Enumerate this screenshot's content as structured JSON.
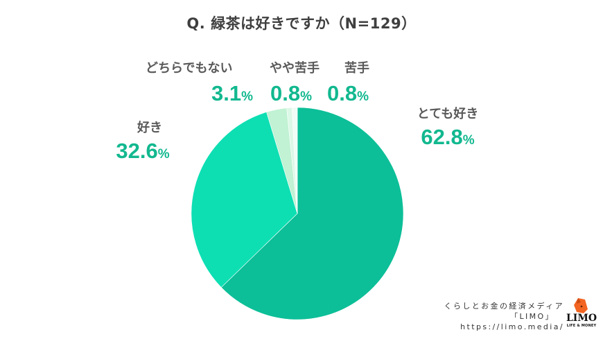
{
  "title": "Q. 緑茶は好きですか（N=129）",
  "chart_data": {
    "type": "pie",
    "title": "Q. 緑茶は好きですか（N=129）",
    "sample_size": 129,
    "start_angle_deg": 0,
    "direction": "clockwise",
    "categories": [
      "とても好き",
      "好き",
      "どちらでもない",
      "やや苦手",
      "苦手"
    ],
    "values": [
      62.8,
      32.6,
      3.1,
      0.8,
      0.8
    ],
    "unit": "%",
    "colors": [
      "#0cbf98",
      "#0ddfb3",
      "#c0f2d3",
      "#dcf8e7",
      "#f0fcf5"
    ],
    "legend": "none (direct labels)"
  },
  "labels": [
    {
      "category": "とても好き",
      "value": "62.8",
      "pct": "%"
    },
    {
      "category": "好き",
      "value": "32.6",
      "pct": "%"
    },
    {
      "category": "どちらでもない",
      "value": "3.1",
      "pct": "%"
    },
    {
      "category": "やや苦手",
      "value": "0.8",
      "pct": "%"
    },
    {
      "category": "苦手",
      "value": "0.8",
      "pct": "%"
    }
  ],
  "footer": {
    "line1": "くらしとお金の経済メディア",
    "line2": "「LIMO」",
    "line3": "https://limo.media/"
  },
  "logo": {
    "text": "LIMO",
    "subtext": "LIFE & MONEY",
    "color": "#f26522"
  }
}
